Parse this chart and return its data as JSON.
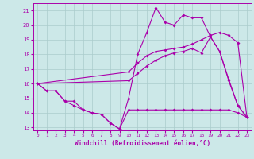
{
  "xlabel": "Windchill (Refroidissement éolien,°C)",
  "xlim": [
    -0.5,
    23.5
  ],
  "ylim": [
    12.8,
    21.5
  ],
  "yticks": [
    13,
    14,
    15,
    16,
    17,
    18,
    19,
    20,
    21
  ],
  "xticks": [
    0,
    1,
    2,
    3,
    4,
    5,
    6,
    7,
    8,
    9,
    10,
    11,
    12,
    13,
    14,
    15,
    16,
    17,
    18,
    19,
    20,
    21,
    22,
    23
  ],
  "bg_color": "#cce8e8",
  "grid_color": "#aacccc",
  "line_color": "#aa00aa",
  "lines": [
    {
      "x": [
        0,
        1,
        2,
        3,
        4,
        5,
        6,
        7,
        8,
        9,
        10,
        11,
        12,
        13,
        14,
        15,
        16,
        17,
        18,
        19,
        20,
        21,
        22,
        23
      ],
      "y": [
        16.0,
        15.5,
        15.5,
        14.8,
        14.5,
        14.2,
        14.0,
        13.9,
        13.3,
        12.9,
        14.2,
        14.2,
        14.2,
        14.2,
        14.2,
        14.2,
        14.2,
        14.2,
        14.2,
        14.2,
        14.2,
        14.2,
        14.0,
        13.7
      ]
    },
    {
      "x": [
        0,
        1,
        2,
        3,
        4,
        5,
        6,
        7,
        8,
        9,
        10,
        11,
        12,
        13,
        14,
        15,
        16,
        17,
        18,
        19,
        20,
        21,
        22,
        23
      ],
      "y": [
        16.0,
        15.5,
        15.5,
        14.8,
        14.8,
        14.2,
        14.0,
        13.9,
        13.3,
        12.9,
        15.0,
        18.0,
        19.5,
        21.2,
        20.2,
        20.0,
        20.7,
        20.5,
        20.5,
        19.2,
        18.2,
        16.3,
        14.5,
        13.7
      ]
    },
    {
      "x": [
        0,
        10,
        11,
        12,
        13,
        14,
        15,
        16,
        17,
        18,
        19,
        20,
        21,
        22,
        23
      ],
      "y": [
        16.0,
        16.8,
        17.4,
        17.9,
        18.2,
        18.3,
        18.4,
        18.5,
        18.7,
        19.0,
        19.3,
        19.5,
        19.3,
        18.8,
        13.7
      ]
    },
    {
      "x": [
        0,
        10,
        11,
        12,
        13,
        14,
        15,
        16,
        17,
        18,
        19,
        20,
        21,
        22,
        23
      ],
      "y": [
        16.0,
        16.2,
        16.7,
        17.2,
        17.6,
        17.9,
        18.1,
        18.2,
        18.4,
        18.1,
        19.2,
        18.2,
        16.2,
        14.5,
        13.7
      ]
    }
  ]
}
